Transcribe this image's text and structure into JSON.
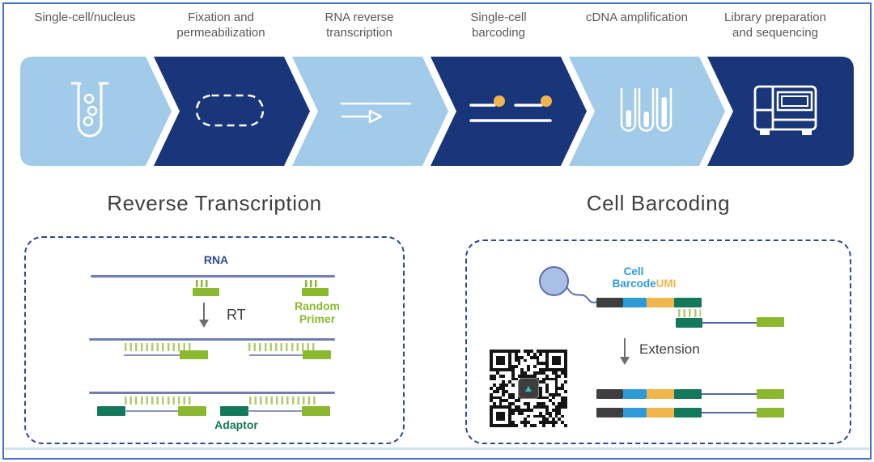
{
  "workflow": {
    "steps": [
      {
        "label": "Single-cell/nucleus",
        "icon": "test-tube-icon",
        "variant": "light"
      },
      {
        "label": "Fixation and permeabilization",
        "icon": "dashed-capsule-icon",
        "variant": "dark"
      },
      {
        "label": "RNA reverse transcription",
        "icon": "reverse-transcription-arrow-icon",
        "variant": "light"
      },
      {
        "label": "Single-cell barcoding",
        "icon": "lines-and-beads-icon",
        "variant": "dark"
      },
      {
        "label": "cDNA amplification",
        "icon": "three-test-tubes-icon",
        "variant": "light"
      },
      {
        "label": "Library preparation and sequencing",
        "icon": "sequencer-icon",
        "variant": "dark"
      }
    ]
  },
  "rt_panel": {
    "title": "Reverse Transcription",
    "rna_label": "RNA",
    "rt_label": "RT",
    "random_primer_label": "Random Primer",
    "adaptor_label": "Adaptor"
  },
  "barcoding_panel": {
    "title": "Cell Barcoding",
    "cell_label": "Cell",
    "barcode_label": "Barcode",
    "umi_label": "UMI",
    "extension_label": "Extension"
  },
  "colors": {
    "frame_border": "#4472C4",
    "chevron_light": "#A2CBE9",
    "chevron_dark": "#19367A",
    "dashed_panel_border": "#2E4897",
    "step_label_gray": "#595959",
    "title_gray": "#3F3F3F",
    "strand_blue": "#6F7DB3",
    "light_green": "#8CB82F",
    "dark_green": "#14795B",
    "barcode_blue": "#2E9AD8",
    "umi_yellow": "#F0B54B",
    "adapter_gray": "#3F3F3F",
    "bead_fill": "#A9BFE4"
  }
}
